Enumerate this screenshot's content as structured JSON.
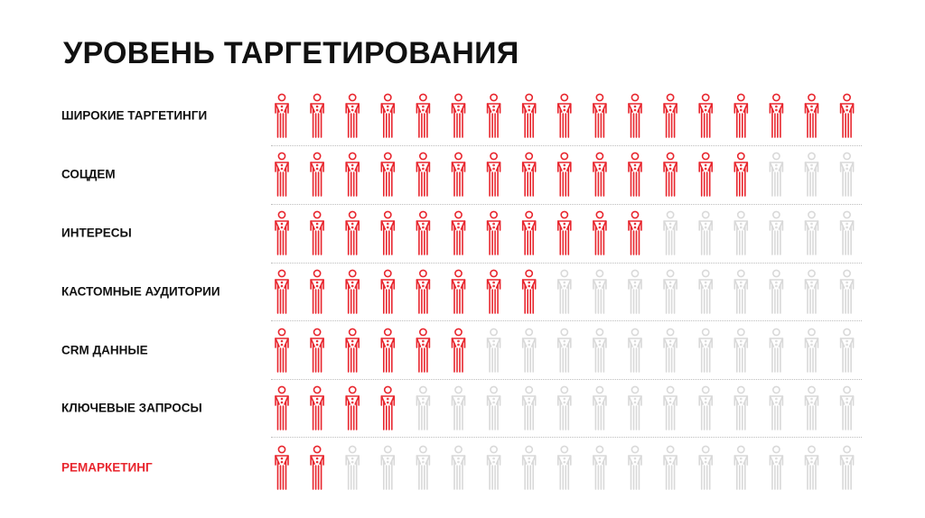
{
  "title": "УРОВЕНЬ ТАРГЕТИРОВАНИЯ",
  "colors": {
    "active": "#e8262e",
    "inactive": "#d9d9d9",
    "text": "#111111"
  },
  "chart_data": {
    "type": "pictograph",
    "icon": "person-icon",
    "icons_per_row": 17,
    "title": "УРОВЕНЬ ТАРГЕТИРОВАНИЯ",
    "categories": [
      "ШИРОКИЕ ТАРГЕТИНГИ",
      "СОЦДЕМ",
      "ИНТЕРЕСЫ",
      "КАСТОМНЫЕ АУДИТОРИИ",
      "CRM ДАННЫЕ",
      "КЛЮЧЕВЫЕ ЗАПРОСЫ",
      "РЕМАРКЕТИНГ"
    ],
    "values": [
      17,
      14,
      11,
      8,
      6,
      4,
      2
    ],
    "highlighted_category": "РЕМАРКЕТИНГ"
  }
}
